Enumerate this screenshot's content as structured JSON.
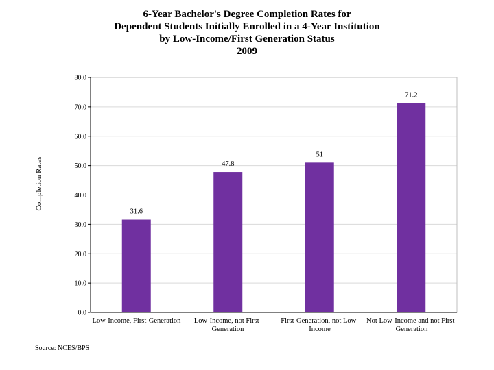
{
  "chart_data": {
    "type": "bar",
    "title_lines": [
      "6-Year Bachelor's Degree Completion Rates for",
      "Dependent Students Initially Enrolled in a 4-Year Institution",
      "by Low-Income/First Generation Status",
      "2009"
    ],
    "ylabel": "Completion Rates",
    "xlabel": "",
    "categories": [
      "Low-Income, First-Generation",
      "Low-Income, not First-Generation",
      "First-Generation, not Low-Income",
      "Not Low-Income and not First-Generation"
    ],
    "values": [
      31.6,
      47.8,
      51,
      71.2
    ],
    "value_labels": [
      "31.6",
      "47.8",
      "51",
      "71.2"
    ],
    "ylim": [
      0,
      80
    ],
    "yticks": [
      "0.0",
      "10.0",
      "20.0",
      "30.0",
      "40.0",
      "50.0",
      "60.0",
      "70.0",
      "80.0"
    ],
    "grid": true,
    "bar_color": "#7030a0",
    "source": "Source: NCES/BPS"
  }
}
